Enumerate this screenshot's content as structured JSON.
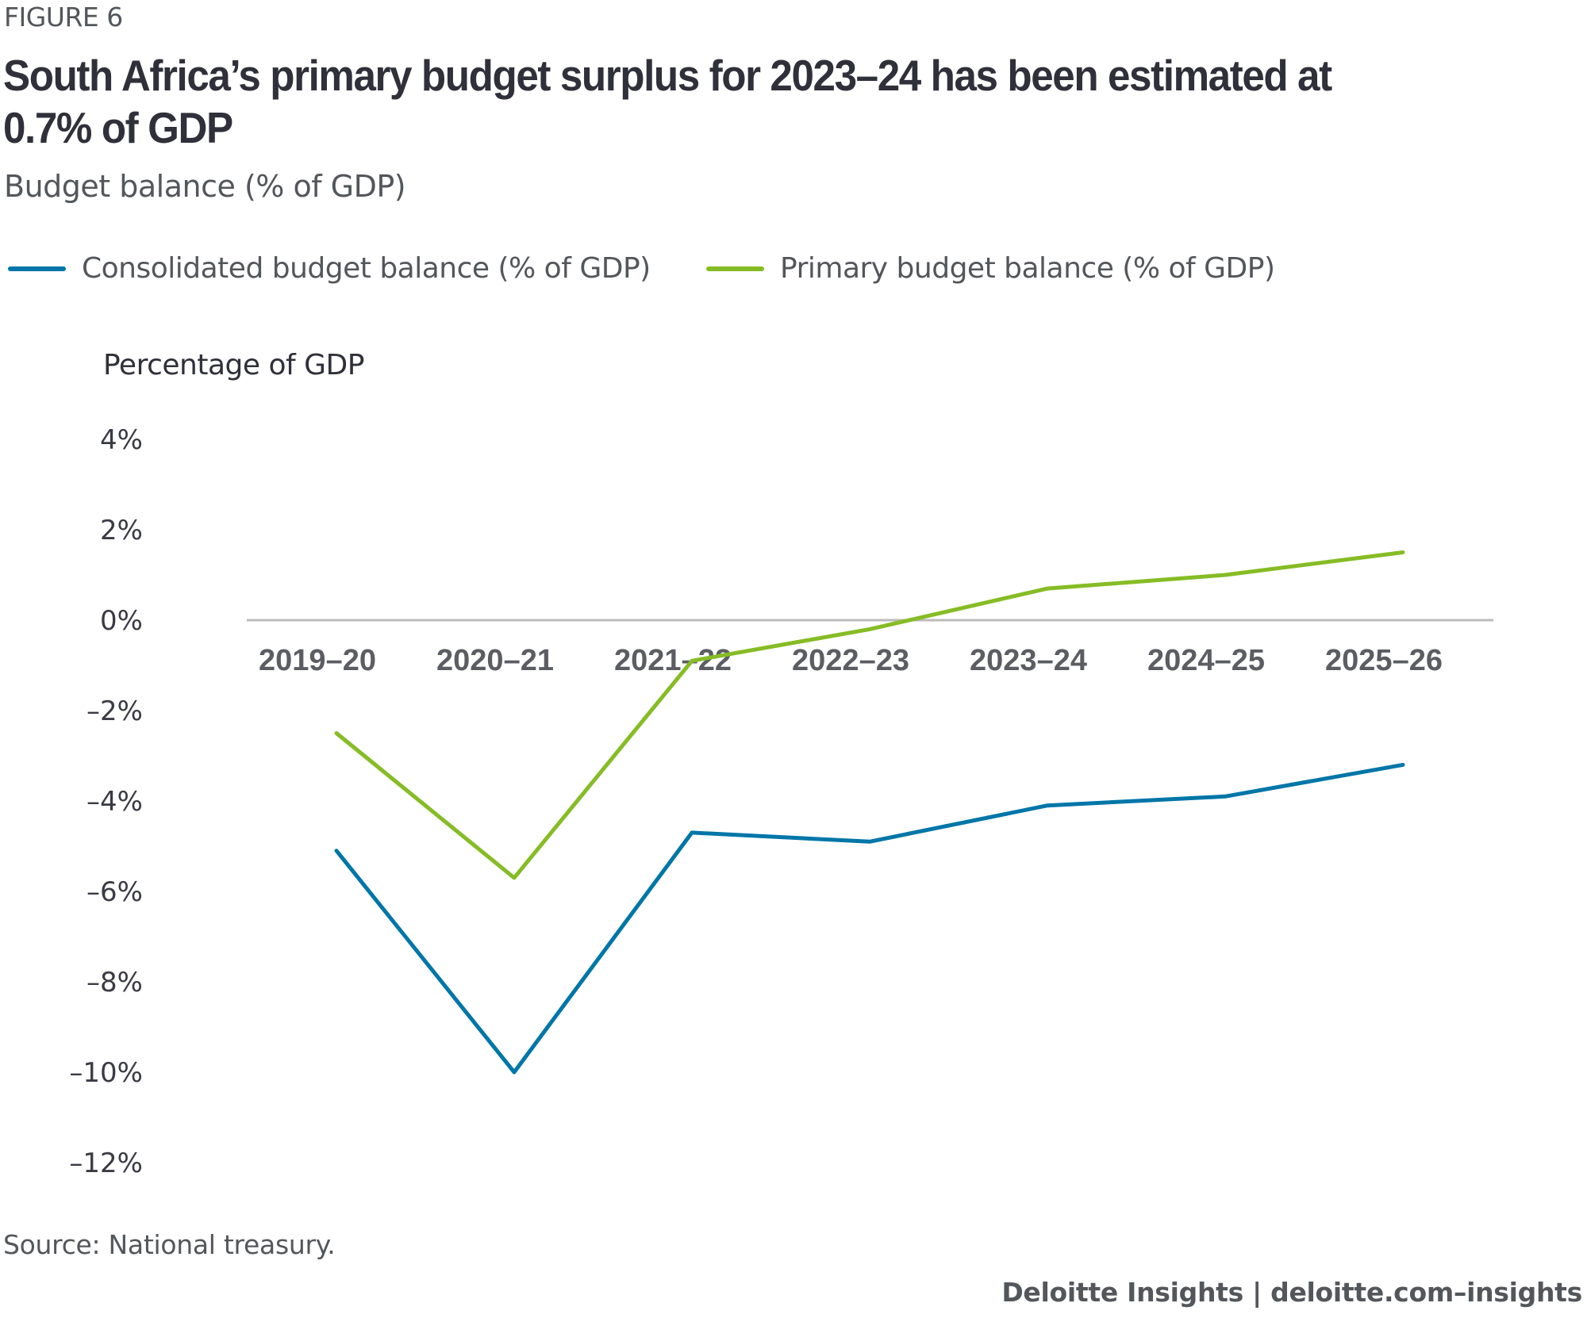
{
  "figure_label": "FIGURE 6",
  "title": "South Africa’s primary budget surplus for 2023–24 has been estimated at 0.7% of GDP",
  "subtitle": "Budget balance (% of GDP)",
  "source": "Source: National treasury.",
  "footer": "Deloitte Insights | deloitte.com–insights",
  "colors": {
    "consolidated": "#0076A8",
    "primary": "#86BC25",
    "zero_line": "#BBBBBB"
  },
  "chart_data": {
    "type": "line",
    "title": "South Africa’s primary budget surplus for 2023–24 has been estimated at 0.7% of GDP",
    "subtitle": "Budget balance (% of GDP)",
    "xlabel": "",
    "ylabel": "Percentage of GDP",
    "categories": [
      "2019–20",
      "2020–21",
      "2021–22",
      "2022–23",
      "2023–24",
      "2024–25",
      "2025–26"
    ],
    "series": [
      {
        "name": "Consolidated budget balance (% of GDP)",
        "color": "#0076A8",
        "values": [
          -5.1,
          -10.0,
          -4.7,
          -4.9,
          -4.1,
          -3.9,
          -3.2
        ]
      },
      {
        "name": "Primary budget balance (% of GDP)",
        "color": "#86BC25",
        "values": [
          -2.5,
          -5.7,
          -0.9,
          -0.2,
          0.7,
          1.0,
          1.5
        ]
      }
    ],
    "ylim": [
      -12,
      4
    ],
    "yticks": [
      4,
      2,
      0,
      -2,
      -4,
      -6,
      -8,
      -10,
      -12
    ],
    "ytick_labels": [
      "4%",
      "2%",
      "0%",
      "–2%",
      "–4%",
      "–6%",
      "–8%",
      "–10%",
      "–12%"
    ],
    "grid": false,
    "zero_line": true,
    "legend_position": "top-left"
  }
}
